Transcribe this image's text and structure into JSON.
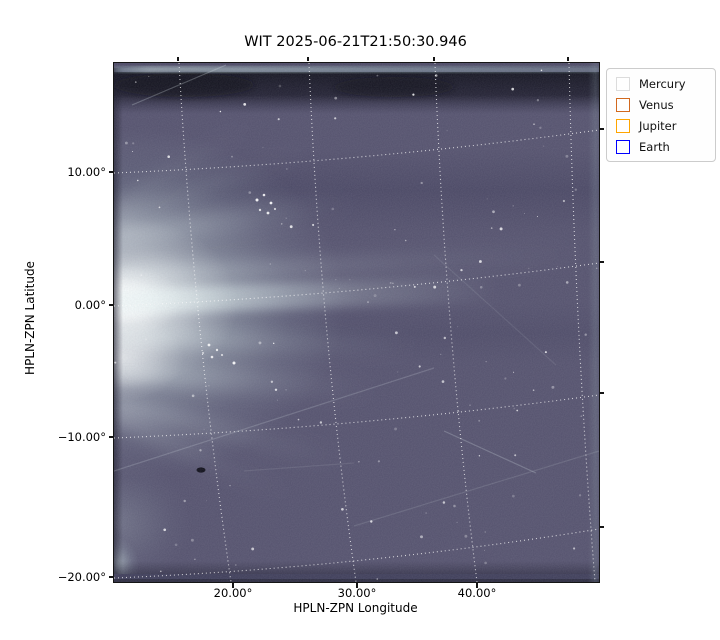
{
  "title": "WIT 2025-06-21T21:50:30.946",
  "axes": {
    "xlabel": "HPLN-ZPN Longitude",
    "ylabel": "HPLN-ZPN Latitude",
    "x_tick_labels": [
      "20.00°",
      "30.00°",
      "40.00°"
    ],
    "y_tick_labels": [
      "10.00°",
      "0.00°",
      "−10.00°",
      "−20.00°"
    ]
  },
  "legend": {
    "entries": [
      {
        "label": "Mercury",
        "color": "#dcdcdc"
      },
      {
        "label": "Venus",
        "color": "#d2691e"
      },
      {
        "label": "Jupiter",
        "color": "#ffa500"
      },
      {
        "label": "Earth",
        "color": "#0000ff"
      }
    ]
  },
  "chart_data": {
    "type": "heatmap",
    "title": "WIT 2025-06-21T21:50:30.946",
    "xlabel": "HPLN-ZPN Longitude",
    "ylabel": "HPLN-ZPN Latitude",
    "xlim": [
      10.4,
      49.7
    ],
    "ylim": [
      -20.9,
      18.3
    ],
    "x_ticks_deg": [
      20,
      30,
      40
    ],
    "y_ticks_deg": [
      10,
      0,
      -10,
      -20
    ],
    "grid": true,
    "grid_style": "white dotted curved WCS graticule",
    "legend_position": "outside upper right",
    "background_color": "#55526e",
    "description": "White-light heliospheric image: bright coronal glow with horizontal streamers entering at the left edge near 0° latitude, fading into a dark slate-purple star field with faint dust trails and a dark band along the top edge"
  }
}
